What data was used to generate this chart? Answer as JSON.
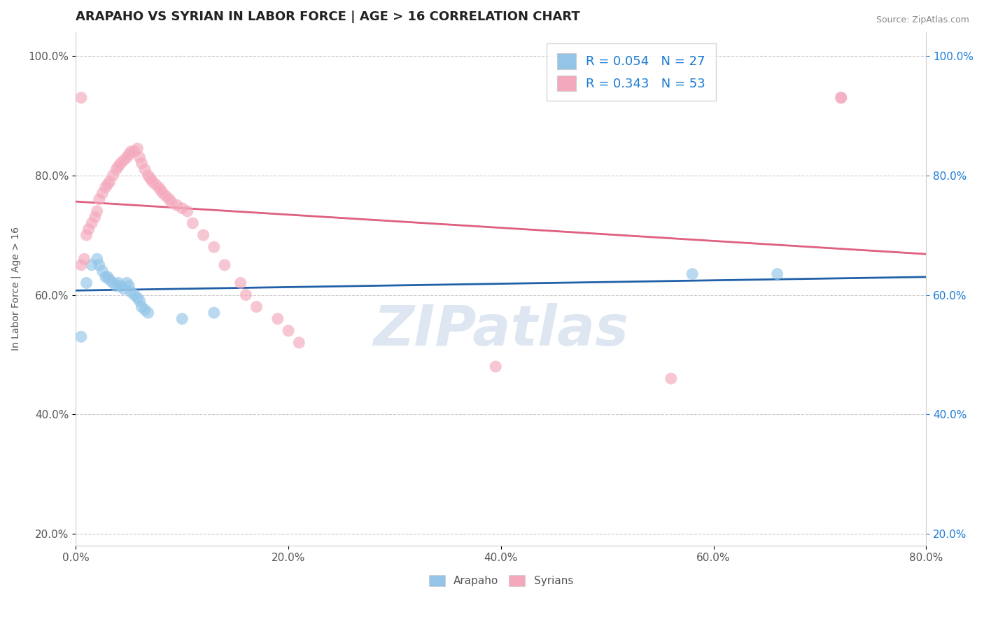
{
  "title": "ARAPAHO VS SYRIAN IN LABOR FORCE | AGE > 16 CORRELATION CHART",
  "source": "Source: ZipAtlas.com",
  "ylabel": "In Labor Force | Age > 16",
  "xlim": [
    0.0,
    0.8
  ],
  "ylim": [
    0.18,
    1.04
  ],
  "xticks": [
    0.0,
    0.2,
    0.4,
    0.6,
    0.8
  ],
  "yticks": [
    0.2,
    0.4,
    0.6,
    0.8,
    1.0
  ],
  "xtick_labels": [
    "0.0%",
    "20.0%",
    "40.0%",
    "60.0%",
    "80.0%"
  ],
  "ytick_labels": [
    "20.0%",
    "40.0%",
    "60.0%",
    "80.0%",
    "100.0%"
  ],
  "arapaho_R": 0.054,
  "arapaho_N": 27,
  "syrian_R": 0.343,
  "syrian_N": 53,
  "arapaho_color": "#92c5e8",
  "syrian_color": "#f4a8bc",
  "arapaho_line_color": "#2060a8",
  "syrian_line_color": "#e06080",
  "arapaho_dash_color": "#c0c8d0",
  "watermark_color": "#c8d8e8",
  "legend_text_color": "#1a7ad4",
  "arapaho_x": [
    0.005,
    0.01,
    0.015,
    0.02,
    0.022,
    0.025,
    0.028,
    0.03,
    0.032,
    0.035,
    0.038,
    0.04,
    0.042,
    0.045,
    0.048,
    0.05,
    0.052,
    0.055,
    0.058,
    0.06,
    0.062,
    0.065,
    0.068,
    0.1,
    0.13,
    0.58,
    0.66
  ],
  "arapaho_y": [
    0.53,
    0.62,
    0.65,
    0.66,
    0.65,
    0.64,
    0.63,
    0.63,
    0.625,
    0.62,
    0.615,
    0.62,
    0.615,
    0.61,
    0.62,
    0.615,
    0.605,
    0.6,
    0.595,
    0.59,
    0.58,
    0.575,
    0.57,
    0.56,
    0.57,
    0.635,
    0.635
  ],
  "syrian_x": [
    0.005,
    0.008,
    0.01,
    0.012,
    0.015,
    0.018,
    0.02,
    0.022,
    0.025,
    0.028,
    0.03,
    0.032,
    0.035,
    0.038,
    0.04,
    0.042,
    0.045,
    0.048,
    0.05,
    0.052,
    0.055,
    0.058,
    0.06,
    0.062,
    0.065,
    0.068,
    0.07,
    0.072,
    0.075,
    0.078,
    0.08,
    0.082,
    0.085,
    0.088,
    0.09,
    0.095,
    0.1,
    0.105,
    0.11,
    0.12,
    0.13,
    0.14,
    0.155,
    0.16,
    0.17,
    0.19,
    0.2,
    0.21,
    0.395,
    0.56,
    0.72,
    0.72,
    0.005
  ],
  "syrian_y": [
    0.65,
    0.66,
    0.7,
    0.71,
    0.72,
    0.73,
    0.74,
    0.76,
    0.77,
    0.78,
    0.785,
    0.79,
    0.8,
    0.81,
    0.815,
    0.82,
    0.825,
    0.83,
    0.835,
    0.84,
    0.84,
    0.845,
    0.83,
    0.82,
    0.81,
    0.8,
    0.795,
    0.79,
    0.785,
    0.78,
    0.775,
    0.77,
    0.765,
    0.76,
    0.755,
    0.75,
    0.745,
    0.74,
    0.72,
    0.7,
    0.68,
    0.65,
    0.62,
    0.6,
    0.58,
    0.56,
    0.54,
    0.52,
    0.48,
    0.46,
    0.93,
    0.93,
    0.93
  ]
}
